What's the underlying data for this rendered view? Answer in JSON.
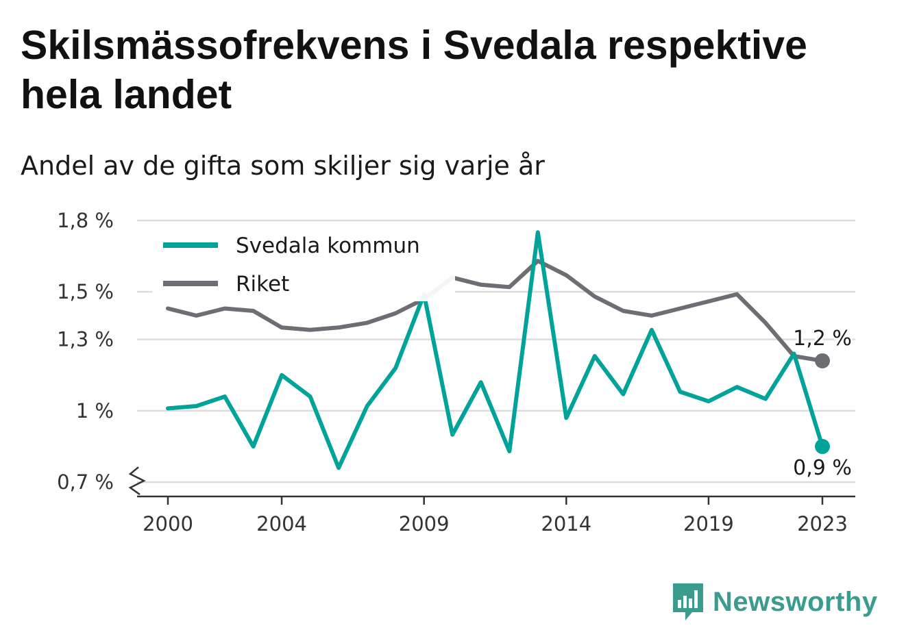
{
  "title": "Skilsmässofrekvens i Svedala respektive hela landet",
  "subtitle": "Andel av de gifta som skiljer sig varje år",
  "brand": {
    "name": "Newsworthy",
    "icon": "newsworthy-logo-icon",
    "color": "#3a9c8f"
  },
  "chart_data": {
    "type": "line",
    "x": [
      2000,
      2001,
      2002,
      2003,
      2004,
      2005,
      2006,
      2007,
      2008,
      2009,
      2010,
      2011,
      2012,
      2013,
      2014,
      2015,
      2016,
      2017,
      2018,
      2019,
      2020,
      2021,
      2022,
      2023
    ],
    "xticks": [
      2000,
      2004,
      2009,
      2014,
      2019,
      2023
    ],
    "xtick_labels": [
      "2000",
      "2004",
      "2009",
      "2014",
      "2019",
      "2023"
    ],
    "yticks": [
      0.7,
      1.0,
      1.3,
      1.5,
      1.8
    ],
    "ytick_labels": [
      "0,7 %",
      "1 %",
      "1,3 %",
      "1,5 %",
      "1,8 %"
    ],
    "ylim": [
      0.64,
      1.82
    ],
    "grid": true,
    "legend": "top-left",
    "series": [
      {
        "name": "Svedala kommun",
        "color": "#00a399",
        "values": [
          1.01,
          1.02,
          1.06,
          0.85,
          1.15,
          1.06,
          0.76,
          1.02,
          1.18,
          1.49,
          0.9,
          1.12,
          0.83,
          1.75,
          0.97,
          1.23,
          1.07,
          1.34,
          1.08,
          1.04,
          1.1,
          1.05,
          1.24,
          0.85
        ],
        "end_label": "0,9 %"
      },
      {
        "name": "Riket",
        "color": "#6e6d73",
        "values": [
          1.43,
          1.4,
          1.43,
          1.42,
          1.35,
          1.34,
          1.35,
          1.37,
          1.41,
          1.47,
          1.56,
          1.53,
          1.52,
          1.63,
          1.57,
          1.48,
          1.42,
          1.4,
          1.43,
          1.46,
          1.49,
          1.37,
          1.23,
          1.21
        ],
        "end_label": "1,2 %"
      }
    ]
  }
}
